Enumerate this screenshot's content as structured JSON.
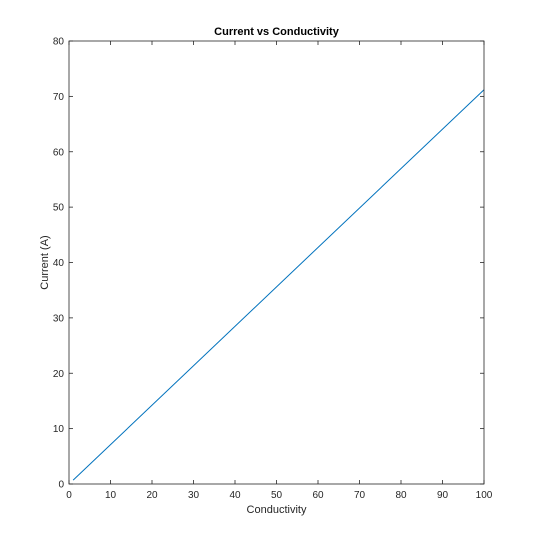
{
  "chart_data": {
    "type": "line",
    "title": "Current vs Conductivity",
    "xlabel": "Conductivity",
    "ylabel": "Current (A)",
    "xlim": [
      0,
      100
    ],
    "ylim": [
      0,
      80
    ],
    "xticks": [
      0,
      10,
      20,
      30,
      40,
      50,
      60,
      70,
      80,
      90,
      100
    ],
    "yticks": [
      0,
      10,
      20,
      30,
      40,
      50,
      60,
      70,
      80
    ],
    "grid": false,
    "series": [
      {
        "x": [
          1,
          100
        ],
        "y": [
          0.7,
          71.2
        ]
      }
    ],
    "colors": {
      "line": "#0072BD",
      "axes": "#262626"
    }
  }
}
